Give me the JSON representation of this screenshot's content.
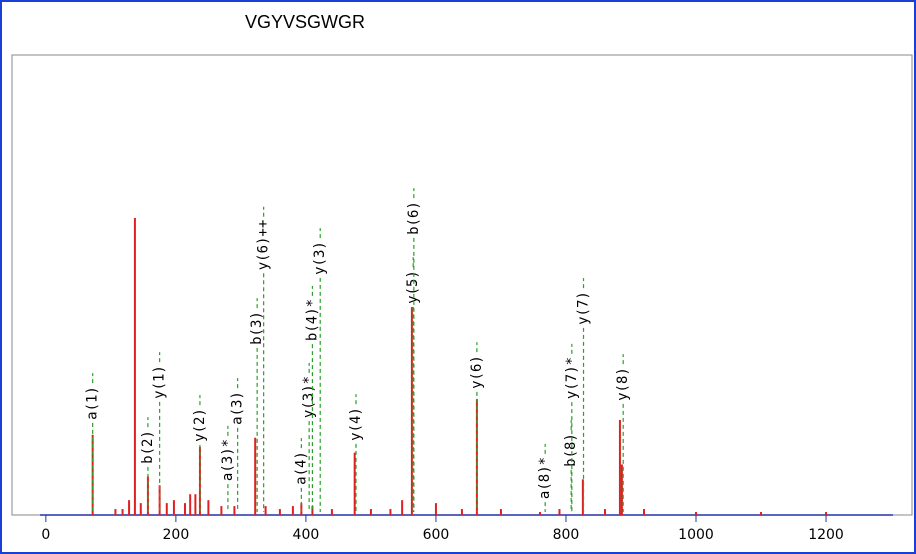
{
  "chart_data": {
    "type": "stick",
    "title": "VGYVSGWGR",
    "xlim": [
      -9,
      1303
    ],
    "ylim": [
      0,
      100
    ],
    "xticks": [
      0,
      200,
      400,
      600,
      800,
      1000,
      1200
    ],
    "series": [
      {
        "name": "peaks",
        "color": "#e02020",
        "x": [
          72,
          107,
          118,
          128,
          137,
          146,
          157,
          175,
          186,
          197,
          214,
          222,
          230,
          237,
          250,
          270,
          290,
          322,
          338,
          360,
          380,
          393,
          410,
          440,
          475,
          500,
          530,
          548,
          563,
          600,
          640,
          663,
          700,
          760,
          790,
          826,
          860,
          883,
          886,
          920,
          1000,
          1100,
          1200
        ],
        "values": [
          27,
          2,
          2,
          5,
          100,
          4,
          13,
          10,
          4,
          5,
          4,
          7,
          7,
          23,
          5,
          3,
          3,
          26,
          3,
          2,
          3,
          4,
          3,
          2,
          21,
          2,
          2,
          5,
          70,
          4,
          2,
          39,
          2,
          1,
          2,
          12,
          2,
          32,
          17,
          2,
          1,
          1,
          1
        ]
      }
    ],
    "annotations": [
      {
        "label": "a(1)",
        "x": 72
      },
      {
        "label": "b(2)",
        "x": 157
      },
      {
        "label": "y(1)",
        "x": 175
      },
      {
        "label": "y(2)",
        "x": 237
      },
      {
        "label": "a(3)*",
        "x": 280
      },
      {
        "label": "a(3)",
        "x": 295
      },
      {
        "label": "b(3)",
        "x": 325
      },
      {
        "label": "y(6)++",
        "x": 335
      },
      {
        "label": "a(4)",
        "x": 393
      },
      {
        "label": "y(3)*",
        "x": 405
      },
      {
        "label": "b(4)*",
        "x": 410
      },
      {
        "label": "y(3)",
        "x": 422
      },
      {
        "label": "y(4)",
        "x": 477
      },
      {
        "label": "y(5)",
        "x": 565
      },
      {
        "label": "b(6)",
        "x": 566
      },
      {
        "label": "y(6)",
        "x": 663
      },
      {
        "label": "a(8)*",
        "x": 768
      },
      {
        "label": "b(8)",
        "x": 808
      },
      {
        "label": "y(7)*",
        "x": 809
      },
      {
        "label": "y(7)",
        "x": 827
      },
      {
        "label": "y(8)",
        "x": 888
      }
    ]
  }
}
